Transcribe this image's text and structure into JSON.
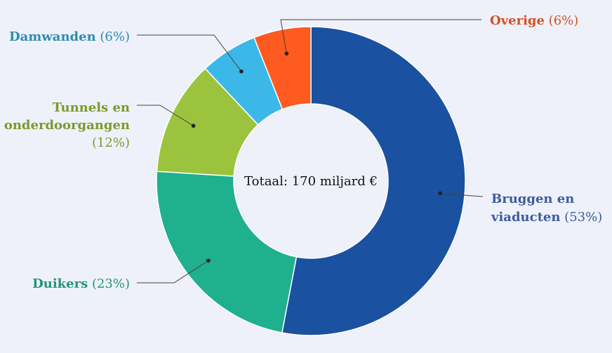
{
  "chart_data": {
    "type": "pie",
    "subtype": "donut",
    "center_label": "Totaal: 170 miljard €",
    "slices": [
      {
        "name": "Bruggen en viaducten",
        "label_lines": [
          "Bruggen en",
          "viaducten"
        ],
        "pct_text": "(53%)",
        "value": 53,
        "color": "#1a51a0",
        "label_color": "#3e5c9c"
      },
      {
        "name": "Duikers",
        "label_lines": [
          "Duikers"
        ],
        "pct_text": "(23%)",
        "value": 23,
        "color": "#1fb08e",
        "label_color": "#24937a"
      },
      {
        "name": "Tunnels en onderdoorgangen",
        "label_lines": [
          "Tunnels en",
          "onderdoorgangen"
        ],
        "pct_text": "(12%)",
        "value": 12,
        "color": "#9cc33e",
        "label_color": "#7b9a2b"
      },
      {
        "name": "Damwanden",
        "label_lines": [
          "Damwanden"
        ],
        "pct_text": "(6%)",
        "value": 6,
        "color": "#3bb7e8",
        "label_color": "#2f8bb0"
      },
      {
        "name": "Overige",
        "label_lines": [
          "Overige"
        ],
        "pct_text": "(6%)",
        "value": 6,
        "color": "#ff5a1f",
        "label_color": "#d45020"
      }
    ]
  }
}
